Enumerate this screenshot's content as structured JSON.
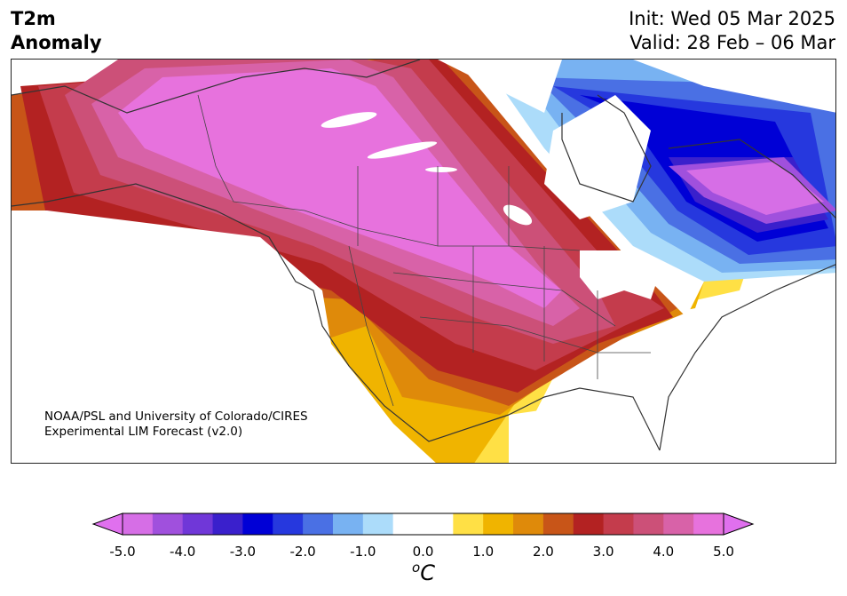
{
  "header": {
    "title_line1": "T2m",
    "title_line2": "Anomaly",
    "init": "Init: Wed 05 Mar 2025",
    "valid": "Valid: 28 Feb – 06 Mar"
  },
  "credit": {
    "line1": "NOAA/PSL and University of Colorado/CIRES",
    "line2": "Experimental LIM Forecast (v2.0)"
  },
  "colorbar": {
    "unit_base": "C",
    "unit_sup": "o",
    "ticks": [
      "-5.0",
      "-4.0",
      "-3.0",
      "-2.0",
      "-1.0",
      "0.0",
      "1.0",
      "2.0",
      "3.0",
      "4.0",
      "5.0"
    ],
    "colors": [
      "#d66ee6",
      "#a050dd",
      "#7037d8",
      "#3a20cc",
      "#0000d6",
      "#2638de",
      "#4a70e4",
      "#78b2f2",
      "#acdcfa",
      "#ffffff",
      "#ffffff",
      "#ffe045",
      "#f0b400",
      "#df8a0a",
      "#c85518",
      "#b32222",
      "#c43c4c",
      "#cc5078",
      "#d862a8",
      "#e772dd"
    ],
    "min_color": "#e070ee",
    "max_color": "#e070ee"
  }
}
